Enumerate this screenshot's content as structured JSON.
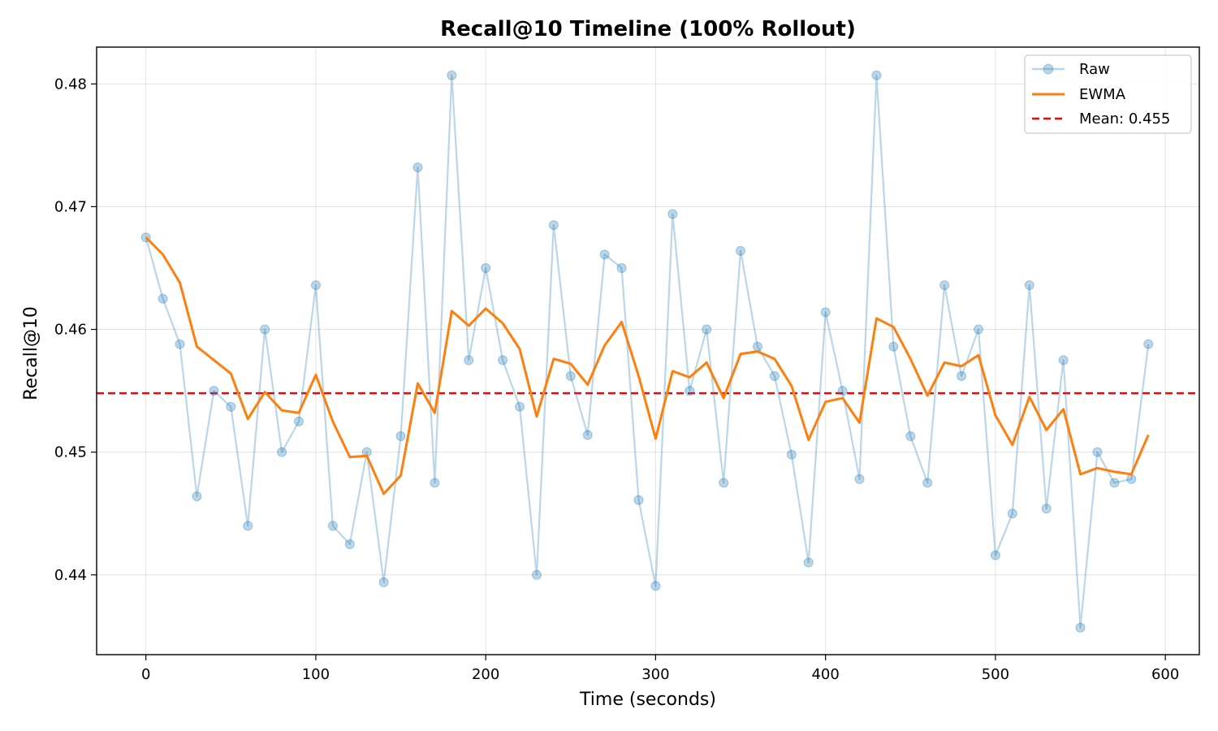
{
  "chart_data": {
    "type": "line",
    "title": "Recall@10 Timeline (100% Rollout)",
    "xlabel": "Time (seconds)",
    "ylabel": "Recall@10",
    "xlim": [
      -29,
      620
    ],
    "ylim": [
      0.4335,
      0.483
    ],
    "x_ticks": [
      0,
      100,
      200,
      300,
      400,
      500,
      600
    ],
    "y_ticks": [
      0.44,
      0.45,
      0.46,
      0.47,
      0.48
    ],
    "x_tick_labels": [
      "0",
      "100",
      "200",
      "300",
      "400",
      "500",
      "600"
    ],
    "y_tick_labels": [
      "0.44",
      "0.45",
      "0.46",
      "0.47",
      "0.48"
    ],
    "grid": true,
    "legend_position": "top-right",
    "x": [
      0,
      10,
      20,
      30,
      40,
      50,
      60,
      70,
      80,
      90,
      100,
      110,
      120,
      130,
      140,
      150,
      160,
      170,
      180,
      190,
      200,
      210,
      220,
      230,
      240,
      250,
      260,
      270,
      280,
      290,
      300,
      310,
      320,
      330,
      340,
      350,
      360,
      370,
      380,
      390,
      400,
      410,
      420,
      430,
      440,
      450,
      460,
      470,
      480,
      490,
      500,
      510,
      520,
      530,
      540,
      550,
      560,
      570,
      580,
      590
    ],
    "series": [
      {
        "name": "Raw",
        "style": "line-with-markers",
        "color": "#1f77b4",
        "values": [
          0.4675,
          0.4625,
          0.4588,
          0.4464,
          0.455,
          0.4537,
          0.444,
          0.46,
          0.45,
          0.4525,
          0.4636,
          0.444,
          0.4425,
          0.45,
          0.4394,
          0.4513,
          0.4732,
          0.4475,
          0.4807,
          0.4575,
          0.465,
          0.4575,
          0.4537,
          0.44,
          0.4685,
          0.4562,
          0.4514,
          0.4661,
          0.465,
          0.4461,
          0.4391,
          0.4694,
          0.455,
          0.46,
          0.4475,
          0.4664,
          0.4586,
          0.4562,
          0.4498,
          0.441,
          0.4614,
          0.455,
          0.4478,
          0.4807,
          0.4586,
          0.4513,
          0.4475,
          0.4636,
          0.4562,
          0.46,
          0.4416,
          0.445,
          0.4636,
          0.4454,
          0.4575,
          0.4357,
          0.45,
          0.4475,
          0.4478,
          0.4588
        ]
      },
      {
        "name": "EWMA",
        "style": "line",
        "color": "#ff7f0e",
        "values": [
          0.4675,
          0.4661,
          0.4638,
          0.4586,
          0.4575,
          0.4564,
          0.4527,
          0.4549,
          0.4534,
          0.4532,
          0.4563,
          0.4525,
          0.4496,
          0.4497,
          0.4466,
          0.4481,
          0.4556,
          0.4532,
          0.4615,
          0.4603,
          0.4617,
          0.4605,
          0.4584,
          0.4529,
          0.4576,
          0.4572,
          0.4555,
          0.4587,
          0.4606,
          0.4562,
          0.4511,
          0.4566,
          0.4561,
          0.4573,
          0.4544,
          0.458,
          0.4582,
          0.4576,
          0.4554,
          0.451,
          0.4541,
          0.4544,
          0.4524,
          0.4609,
          0.4602,
          0.4576,
          0.4546,
          0.4573,
          0.457,
          0.4579,
          0.453,
          0.4506,
          0.4545,
          0.4518,
          0.4535,
          0.4482,
          0.4487,
          0.4484,
          0.4482,
          0.4514
        ]
      }
    ],
    "reference_lines": [
      {
        "name": "Mean: 0.455",
        "value": 0.4548,
        "color": "#ff0000",
        "style": "dashed"
      }
    ]
  }
}
